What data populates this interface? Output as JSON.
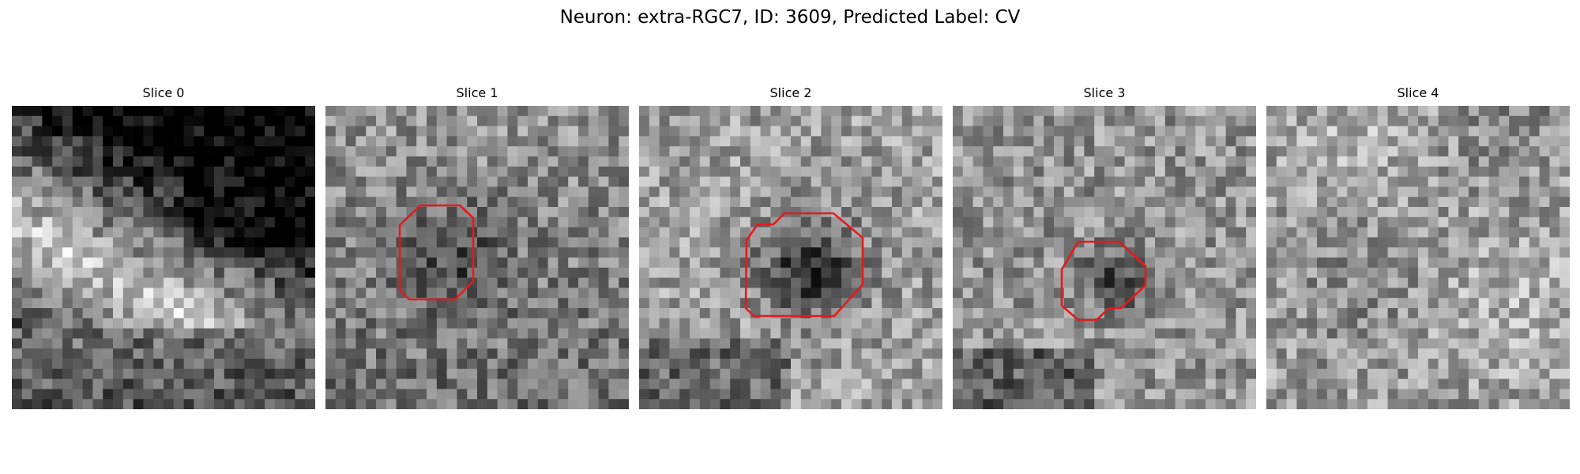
{
  "figure": {
    "title": "Neuron: extra-RGC7, ID: 3609, Predicted Label: CV"
  },
  "slices": [
    {
      "label": "Slice 0",
      "has_roi": false,
      "seed": 11,
      "theme": "diagonal-band"
    },
    {
      "label": "Slice 1",
      "has_roi": true,
      "seed": 23,
      "theme": "dark-blob"
    },
    {
      "label": "Slice 2",
      "has_roi": true,
      "seed": 37,
      "theme": "dark-blob-strong"
    },
    {
      "label": "Slice 3",
      "has_roi": true,
      "seed": 51,
      "theme": "small-dark"
    },
    {
      "label": "Slice 4",
      "has_roi": false,
      "seed": 67,
      "theme": "noise-light"
    }
  ],
  "roi_color": "#e41a1c",
  "colormap": "gray"
}
